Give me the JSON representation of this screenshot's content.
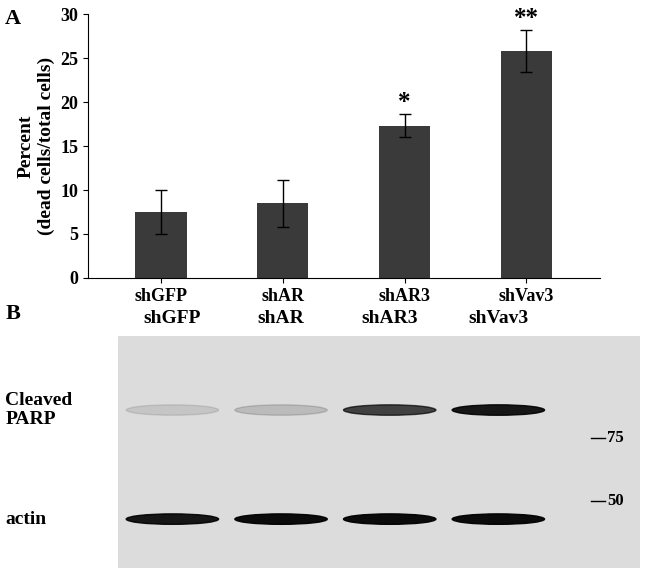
{
  "chart_data": {
    "type": "bar",
    "panel": "A",
    "y_label": "Percent\n(dead cells/total cells)",
    "categories": [
      "shGFP",
      "shAR",
      "shAR3",
      "shVav3"
    ],
    "values": [
      7.5,
      8.5,
      17.3,
      25.8
    ],
    "errors": [
      2.5,
      2.7,
      1.3,
      2.4
    ],
    "significance": [
      null,
      null,
      "*",
      "**"
    ],
    "color": "#3a3a3a",
    "ylim": [
      0,
      30
    ],
    "yticks": [
      0,
      5,
      10,
      15,
      20,
      25,
      30
    ],
    "grid": false
  },
  "blot": {
    "panel": "B",
    "lanes": [
      "shGFP",
      "shAR",
      "shAR3",
      "shVav3"
    ],
    "rows": [
      {
        "label": "Cleaved\nPARP",
        "intensities": [
          0.1,
          0.15,
          0.7,
          0.9
        ]
      },
      {
        "label": "actin",
        "intensities": [
          0.9,
          0.95,
          0.95,
          0.95
        ]
      }
    ],
    "markers": [
      75,
      50
    ]
  }
}
